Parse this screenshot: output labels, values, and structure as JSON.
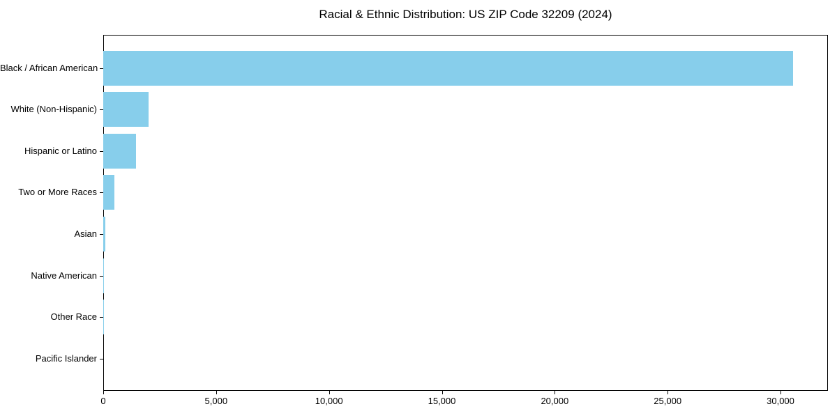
{
  "chart_data": {
    "type": "bar",
    "orientation": "horizontal",
    "title": "Racial & Ethnic Distribution: US ZIP Code 32209 (2024)",
    "categories": [
      "Black / African American",
      "White (Non-Hispanic)",
      "Hispanic or Latino",
      "Two or More Races",
      "Asian",
      "Native American",
      "Other Race",
      "Pacific Islander"
    ],
    "values": [
      30540,
      2000,
      1460,
      500,
      100,
      10,
      5,
      2
    ],
    "xlabel": "",
    "ylabel": "",
    "xlim": [
      0,
      32100
    ],
    "x_ticks": [
      0,
      5000,
      10000,
      15000,
      20000,
      25000,
      30000
    ],
    "x_tick_labels": [
      "0",
      "5,000",
      "10,000",
      "15,000",
      "20,000",
      "25,000",
      "30,000"
    ],
    "grid": false,
    "legend": false,
    "bar_color": "#87CEEB",
    "background_color": "#FFFFFF",
    "spine_color": "#000000",
    "text_color": "#000000"
  }
}
